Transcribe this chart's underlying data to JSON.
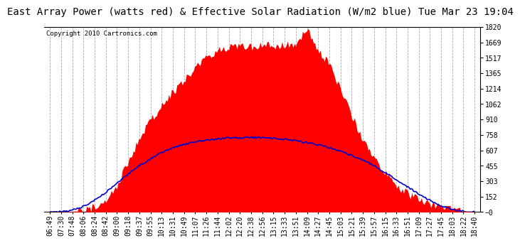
{
  "title": "East Array Power (watts red) & Effective Solar Radiation (W/m2 blue) Tue Mar 23 19:04",
  "copyright_text": "Copyright 2010 Cartronics.com",
  "ylim": [
    -0.2,
    1820.5
  ],
  "yticks": [
    1820.5,
    1668.8,
    1517.1,
    1365.3,
    1213.6,
    1061.9,
    910.1,
    758.4,
    606.7,
    455.0,
    303.2,
    151.5,
    -0.2
  ],
  "x_labels": [
    "06:49",
    "07:30",
    "07:48",
    "08:06",
    "08:24",
    "08:42",
    "09:00",
    "09:18",
    "09:37",
    "09:55",
    "10:13",
    "10:31",
    "10:49",
    "11:07",
    "11:26",
    "11:44",
    "12:02",
    "12:20",
    "12:38",
    "12:56",
    "13:15",
    "13:33",
    "13:51",
    "14:09",
    "14:27",
    "14:45",
    "15:03",
    "15:21",
    "15:39",
    "15:57",
    "16:15",
    "16:33",
    "16:51",
    "17:09",
    "17:27",
    "17:45",
    "18:03",
    "18:22",
    "18:40"
  ],
  "red_values": [
    2,
    2,
    5,
    20,
    50,
    120,
    260,
    500,
    720,
    900,
    1050,
    1180,
    1300,
    1420,
    1530,
    1590,
    1620,
    1630,
    1630,
    1635,
    1640,
    1640,
    1640,
    1820,
    1580,
    1460,
    1200,
    950,
    720,
    530,
    380,
    260,
    180,
    120,
    80,
    50,
    25,
    10,
    2
  ],
  "blue_values": [
    2,
    5,
    18,
    55,
    115,
    195,
    285,
    375,
    455,
    525,
    585,
    630,
    665,
    690,
    708,
    720,
    728,
    732,
    733,
    730,
    724,
    714,
    700,
    682,
    660,
    632,
    598,
    558,
    510,
    455,
    390,
    320,
    248,
    178,
    115,
    62,
    25,
    7,
    1
  ],
  "bg_color": "#ffffff",
  "plot_bg_color": "#ffffff",
  "grid_color": "#aaaaaa",
  "grid_linestyle": "--",
  "red_fill_color": "#ff0000",
  "blue_line_color": "#0000cc",
  "title_fontsize": 10,
  "tick_fontsize": 7,
  "copyright_fontsize": 6.5
}
